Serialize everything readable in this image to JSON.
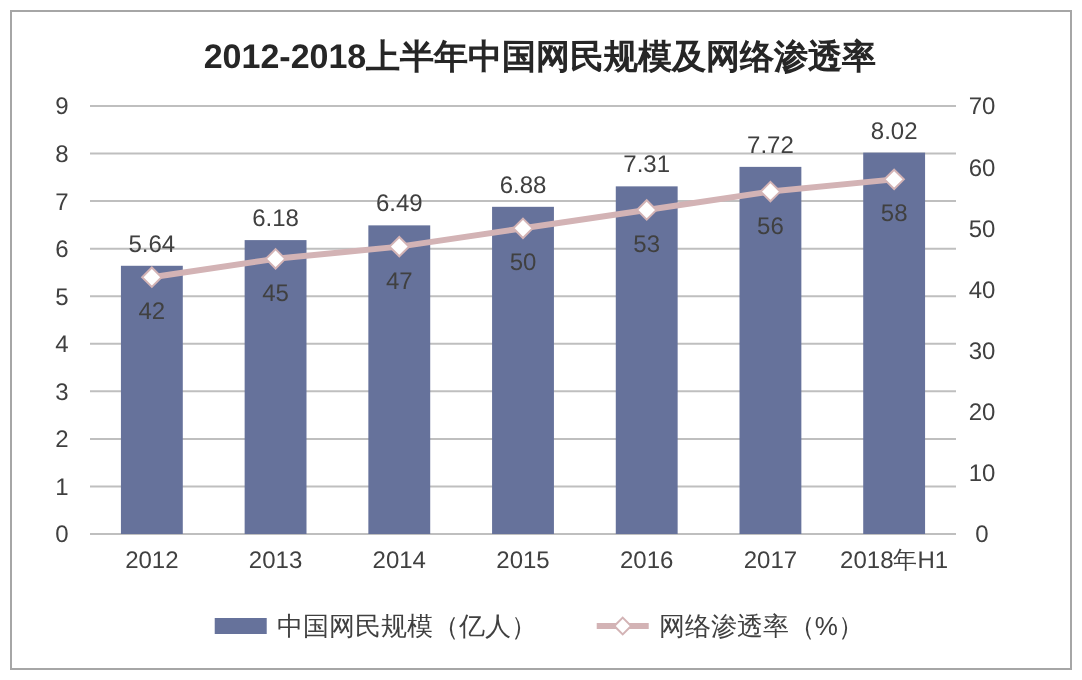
{
  "chart_data": {
    "type": "bar",
    "title": "2012-2018上半年中国网民规模及网络渗透率",
    "categories": [
      "2012",
      "2013",
      "2014",
      "2015",
      "2016",
      "2017",
      "2018年H1"
    ],
    "series": [
      {
        "name": "中国网民规模（亿人）",
        "color": "#66729b",
        "values": [
          5.64,
          6.18,
          6.49,
          6.88,
          7.31,
          7.72,
          8.02
        ]
      },
      {
        "name": "网络渗透率（%）",
        "type": "line",
        "axis": "y2",
        "color": "#d3b3b5",
        "values": [
          42,
          45,
          47,
          50,
          53,
          56,
          58
        ]
      }
    ],
    "ylim": [
      0,
      9
    ],
    "yticks": [
      0,
      1,
      2,
      3,
      4,
      5,
      6,
      7,
      8,
      9
    ],
    "y2lim": [
      0,
      70
    ],
    "y2ticks": [
      0,
      10,
      20,
      30,
      40,
      50,
      60,
      70
    ],
    "grid": "y",
    "legend": "bottom",
    "marker": "diamond",
    "data_labels": true
  }
}
